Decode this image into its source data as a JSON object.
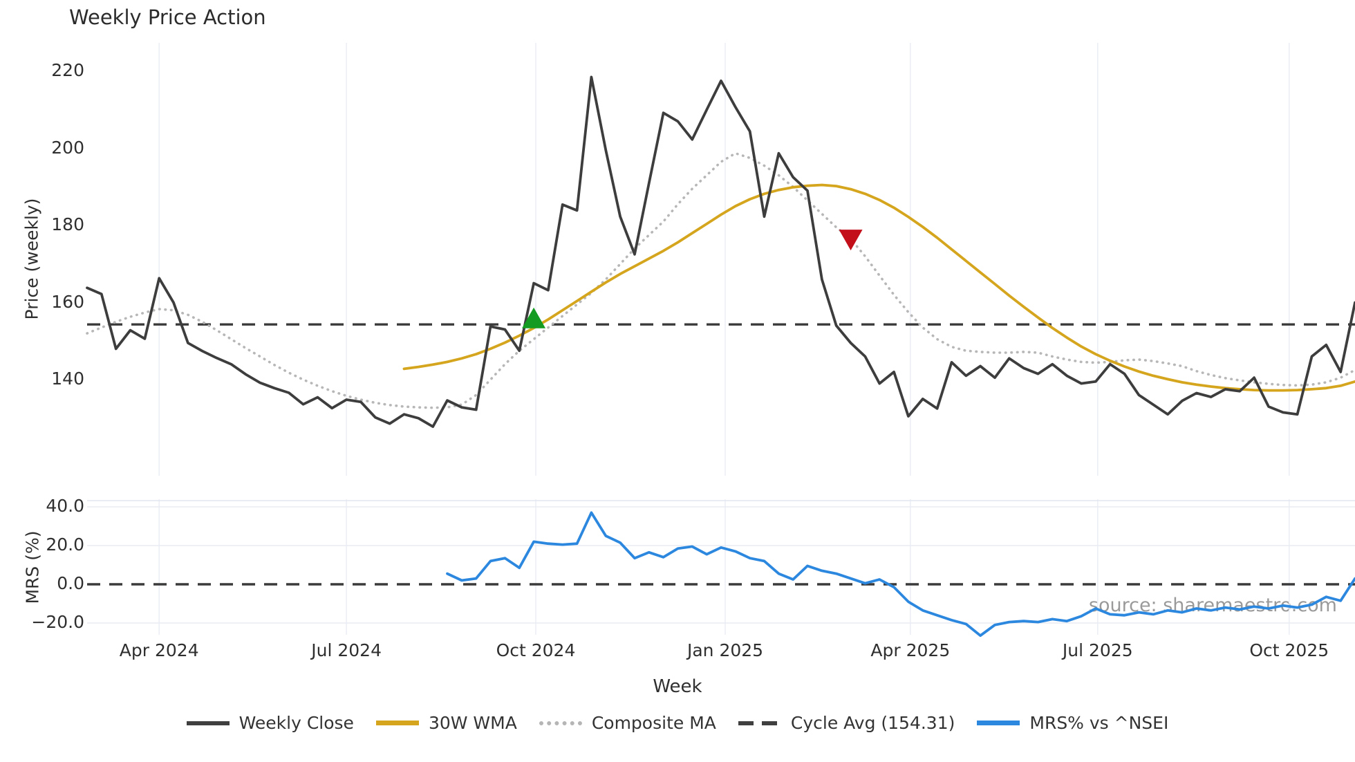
{
  "title": "Weekly Price Action",
  "watermark": "source: sharemaestro.com",
  "axes": {
    "price_label": "Price (weekly)",
    "mrs_label": "MRS (%)",
    "x_label": "Week"
  },
  "legend": {
    "items": [
      {
        "label": "Weekly Close",
        "color": "#3f3f3f",
        "style": "solid"
      },
      {
        "label": "30W WMA",
        "color": "#d4a51d",
        "style": "solid"
      },
      {
        "label": "Composite MA",
        "color": "#b5b5b5",
        "style": "dotted"
      },
      {
        "label": "Cycle Avg (154.31)",
        "color": "#3f3f3f",
        "style": "dashed"
      },
      {
        "label": "MRS% vs ^NSEI",
        "color": "#2c87df",
        "style": "solid"
      }
    ]
  },
  "chart_data": {
    "type": "line",
    "title": "Weekly Price Action",
    "xlabel": "Week",
    "grid": "vertical-only",
    "legend_position": "bottom-center",
    "x": {
      "weeks": [
        "2024-02-26",
        "2024-03-04",
        "2024-03-11",
        "2024-03-18",
        "2024-03-25",
        "2024-04-01",
        "2024-04-08",
        "2024-04-15",
        "2024-04-22",
        "2024-04-29",
        "2024-05-06",
        "2024-05-13",
        "2024-05-20",
        "2024-05-27",
        "2024-06-03",
        "2024-06-10",
        "2024-06-17",
        "2024-06-24",
        "2024-07-01",
        "2024-07-08",
        "2024-07-15",
        "2024-07-22",
        "2024-07-29",
        "2024-08-05",
        "2024-08-12",
        "2024-08-19",
        "2024-08-26",
        "2024-09-02",
        "2024-09-09",
        "2024-09-16",
        "2024-09-23",
        "2024-09-30",
        "2024-10-07",
        "2024-10-14",
        "2024-10-21",
        "2024-10-28",
        "2024-11-04",
        "2024-11-11",
        "2024-11-18",
        "2024-11-25",
        "2024-12-02",
        "2024-12-09",
        "2024-12-16",
        "2024-12-23",
        "2024-12-30",
        "2025-01-06",
        "2025-01-13",
        "2025-01-20",
        "2025-01-27",
        "2025-02-03",
        "2025-02-10",
        "2025-02-17",
        "2025-02-24",
        "2025-03-03",
        "2025-03-10",
        "2025-03-17",
        "2025-03-24",
        "2025-03-31",
        "2025-04-07",
        "2025-04-14",
        "2025-04-21",
        "2025-04-28",
        "2025-05-05",
        "2025-05-12",
        "2025-05-19",
        "2025-05-26",
        "2025-06-02",
        "2025-06-09",
        "2025-06-16",
        "2025-06-23",
        "2025-06-30",
        "2025-07-07",
        "2025-07-14",
        "2025-07-21",
        "2025-07-28",
        "2025-08-04",
        "2025-08-11",
        "2025-08-18",
        "2025-08-25",
        "2025-09-01",
        "2025-09-08",
        "2025-09-15",
        "2025-09-22",
        "2025-09-29",
        "2025-10-06",
        "2025-10-13",
        "2025-10-20",
        "2025-10-27",
        "2025-11-03"
      ],
      "ticks": [
        {
          "label": "Apr 2024",
          "week_index": 5.0
        },
        {
          "label": "Jul 2024",
          "week_index": 18.0
        },
        {
          "label": "Oct 2024",
          "week_index": 31.14
        },
        {
          "label": "Jan 2025",
          "week_index": 44.29
        },
        {
          "label": "Apr 2025",
          "week_index": 57.14
        },
        {
          "label": "Jul 2025",
          "week_index": 70.14
        },
        {
          "label": "Oct 2025",
          "week_index": 83.43
        }
      ]
    },
    "price_panel": {
      "ylabel": "Price (weekly)",
      "yticks": [
        {
          "label": "220",
          "value": 220
        },
        {
          "label": "200",
          "value": 200
        },
        {
          "label": "180",
          "value": 180
        },
        {
          "label": "160",
          "value": 160
        },
        {
          "label": "140",
          "value": 140
        }
      ],
      "ylim": [
        125,
        222
      ],
      "cycle_avg": 154.31,
      "series": [
        {
          "name": "Weekly Close",
          "color": "#3d3d3d",
          "style": "solid",
          "start_index": 0,
          "values": [
            163.8,
            162.2,
            148.0,
            152.8,
            150.6,
            166.3,
            160.0,
            149.5,
            147.4,
            145.6,
            144.0,
            141.4,
            139.2,
            137.8,
            136.6,
            133.6,
            135.4,
            132.6,
            134.8,
            134.2,
            130.2,
            128.6,
            131.0,
            130.0,
            127.8,
            134.6,
            132.8,
            132.2,
            153.8,
            153.0,
            147.5,
            165.0,
            163.2,
            185.4,
            183.9,
            218.5,
            199.5,
            182.3,
            172.5,
            191.0,
            209.2,
            207.0,
            202.3,
            210.0,
            217.5,
            210.7,
            204.4,
            182.3,
            198.7,
            192.5,
            189.0,
            166.0,
            154.0,
            149.5,
            146.0,
            139.0,
            142.0,
            130.5,
            135.0,
            132.5,
            144.5,
            141.0,
            143.5,
            140.5,
            145.5,
            143.0,
            141.5,
            144.0,
            141.0,
            139.0,
            139.5,
            144.0,
            141.5,
            136.0,
            133.5,
            131.0,
            134.5,
            136.5,
            135.5,
            137.5,
            137.0,
            140.5,
            133.0,
            131.5,
            131.0,
            146.0,
            149.0,
            142.0,
            160.0
          ]
        },
        {
          "name": "30W WMA",
          "color": "#d4a51d",
          "style": "solid",
          "start_index": 22,
          "values": [
            142.8,
            143.3,
            143.9,
            144.6,
            145.5,
            146.6,
            148.0,
            149.6,
            151.4,
            153.4,
            155.6,
            158.0,
            160.4,
            162.8,
            165.2,
            167.4,
            169.4,
            171.4,
            173.4,
            175.6,
            178.0,
            180.4,
            182.8,
            185.0,
            186.8,
            188.2,
            189.2,
            189.9,
            190.3,
            190.5,
            190.2,
            189.4,
            188.2,
            186.6,
            184.6,
            182.2,
            179.6,
            176.8,
            173.8,
            170.8,
            167.8,
            164.8,
            161.8,
            158.9,
            156.1,
            153.4,
            150.9,
            148.6,
            146.6,
            144.9,
            143.4,
            142.1,
            141.0,
            140.1,
            139.3,
            138.7,
            138.2,
            137.8,
            137.5,
            137.3,
            137.2,
            137.2,
            137.3,
            137.5,
            137.8,
            138.4,
            139.5
          ]
        },
        {
          "name": "Composite MA",
          "color": "#b7b7b7",
          "style": "dotted",
          "start_index": 0,
          "values": [
            152.0,
            153.5,
            155.0,
            156.3,
            157.4,
            158.3,
            158.0,
            156.8,
            155.0,
            152.8,
            150.5,
            148.2,
            146.0,
            143.8,
            141.8,
            140.0,
            138.4,
            137.0,
            135.8,
            134.8,
            134.0,
            133.4,
            133.0,
            132.8,
            132.7,
            132.8,
            133.5,
            136.0,
            140.0,
            144.0,
            147.5,
            150.5,
            153.5,
            156.5,
            159.5,
            162.5,
            166.0,
            170.0,
            174.0,
            177.5,
            181.0,
            185.5,
            189.5,
            193.0,
            196.5,
            198.7,
            197.5,
            195.5,
            193.0,
            190.0,
            186.5,
            183.0,
            179.5,
            176.5,
            172.0,
            167.0,
            162.0,
            157.5,
            153.5,
            150.5,
            148.5,
            147.5,
            147.2,
            147.0,
            147.0,
            147.2,
            147.0,
            146.0,
            145.2,
            144.6,
            144.4,
            144.6,
            145.0,
            145.2,
            144.8,
            144.2,
            143.5,
            142.2,
            141.2,
            140.4,
            139.8,
            139.3,
            138.9,
            138.6,
            138.5,
            138.7,
            139.3,
            140.5,
            142.5
          ]
        }
      ],
      "markers": [
        {
          "type": "buy-signal",
          "shape": "triangle-up",
          "week_index": 31,
          "price": 156.0,
          "color": "#149b22"
        },
        {
          "type": "sell-signal",
          "shape": "triangle-down",
          "week_index": 53,
          "price": 176.2,
          "color": "#c30f1a"
        }
      ]
    },
    "mrs_panel": {
      "ylabel": "MRS (%)",
      "yticks": [
        {
          "label": "40.0",
          "value": 40
        },
        {
          "label": "20.0",
          "value": 20
        },
        {
          "label": "0.0",
          "value": 0
        },
        {
          "label": "−20.0",
          "value": -20
        }
      ],
      "ylim": [
        -29,
        44
      ],
      "zero_line": 0,
      "series": [
        {
          "name": "MRS% vs ^NSEI",
          "color": "#2c87df",
          "style": "solid",
          "start_index": 25,
          "values": [
            5.5,
            2.0,
            3.0,
            12.0,
            13.5,
            8.5,
            22.0,
            21.0,
            20.5,
            21.0,
            37.0,
            25.0,
            21.5,
            13.5,
            16.5,
            14.0,
            18.5,
            19.5,
            15.5,
            19.0,
            17.0,
            13.5,
            12.0,
            5.5,
            2.5,
            9.5,
            7.0,
            5.5,
            3.0,
            0.5,
            2.5,
            -1.5,
            -9.0,
            -13.5,
            -16.0,
            -18.5,
            -20.5,
            -26.5,
            -21.0,
            -19.5,
            -19.0,
            -19.5,
            -18.0,
            -19.0,
            -16.5,
            -12.5,
            -15.5,
            -16.0,
            -14.5,
            -15.5,
            -13.5,
            -14.5,
            -12.5,
            -13.5,
            -12.0,
            -13.0,
            -11.5,
            -12.5,
            -11.0,
            -12.0,
            -10.5,
            -6.5,
            -8.5,
            3.0
          ]
        }
      ]
    }
  }
}
